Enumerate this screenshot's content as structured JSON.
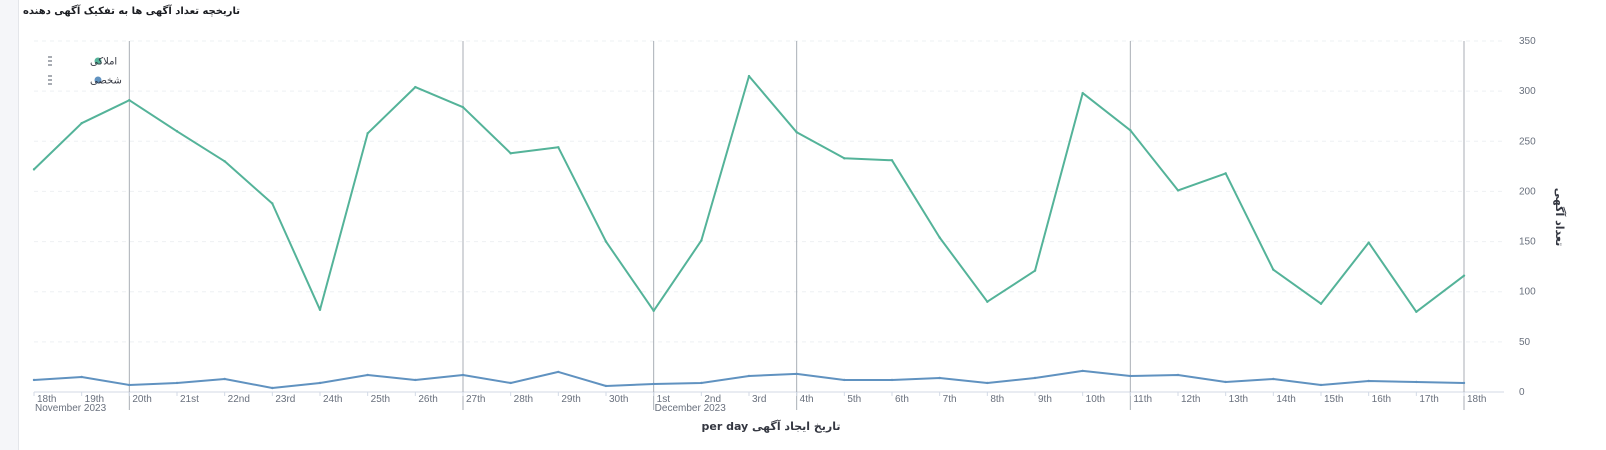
{
  "page": {
    "title": "تاریخچه تعداد آگهی ها به تفکیک آگهی دهنده"
  },
  "chart_data": {
    "type": "line",
    "title": "تاریخچه تعداد آگهی ها به تفکیک آگهی دهنده",
    "xlabel": "تاریخ ایجاد آگهی per day",
    "ylabel": "تعداد آگهی",
    "ylim": [
      0,
      350
    ],
    "yticks": [
      0,
      50,
      100,
      150,
      200,
      250,
      300,
      350
    ],
    "grid": "horizontal-dashed",
    "legend_position": "top-left",
    "x": [
      "2023-11-18",
      "2023-11-19",
      "2023-11-20",
      "2023-11-21",
      "2023-11-22",
      "2023-11-23",
      "2023-11-24",
      "2023-11-25",
      "2023-11-26",
      "2023-11-27",
      "2023-11-28",
      "2023-11-29",
      "2023-11-30",
      "2023-12-01",
      "2023-12-02",
      "2023-12-03",
      "2023-12-04",
      "2023-12-05",
      "2023-12-06",
      "2023-12-07",
      "2023-12-08",
      "2023-12-09",
      "2023-12-10",
      "2023-12-11",
      "2023-12-12",
      "2023-12-13",
      "2023-12-14",
      "2023-12-15",
      "2023-12-16",
      "2023-12-17",
      "2023-12-18"
    ],
    "xtick_labels": [
      "18th",
      "19th",
      "20th",
      "21st",
      "22nd",
      "23rd",
      "24th",
      "25th",
      "26th",
      "27th",
      "28th",
      "29th",
      "30th",
      "1st",
      "2nd",
      "3rd",
      "4th",
      "5th",
      "6th",
      "7th",
      "8th",
      "9th",
      "10th",
      "11th",
      "12th",
      "13th",
      "14th",
      "15th",
      "16th",
      "17th",
      "18th"
    ],
    "month_labels": [
      {
        "index": 0,
        "label": "November 2023"
      },
      {
        "index": 13,
        "label": "December 2023"
      }
    ],
    "week_lines": [
      "2023-11-20",
      "2023-11-27",
      "2023-12-01",
      "2023-12-04",
      "2023-12-11",
      "2023-12-18"
    ],
    "series": [
      {
        "name": "املاکی",
        "color": "#54b399",
        "values": [
          222,
          268,
          291,
          260,
          230,
          188,
          82,
          258,
          304,
          284,
          238,
          244,
          150,
          81,
          151,
          315,
          259,
          233,
          231,
          154,
          90,
          121,
          298,
          261,
          201,
          218,
          122,
          88,
          149,
          80,
          116
        ]
      },
      {
        "name": "شخصی",
        "color": "#6092c0",
        "values": [
          12,
          15,
          7,
          9,
          13,
          4,
          9,
          17,
          12,
          17,
          9,
          20,
          6,
          8,
          9,
          16,
          18,
          12,
          12,
          14,
          9,
          14,
          21,
          16,
          17,
          10,
          13,
          7,
          11,
          10,
          9
        ]
      }
    ]
  }
}
